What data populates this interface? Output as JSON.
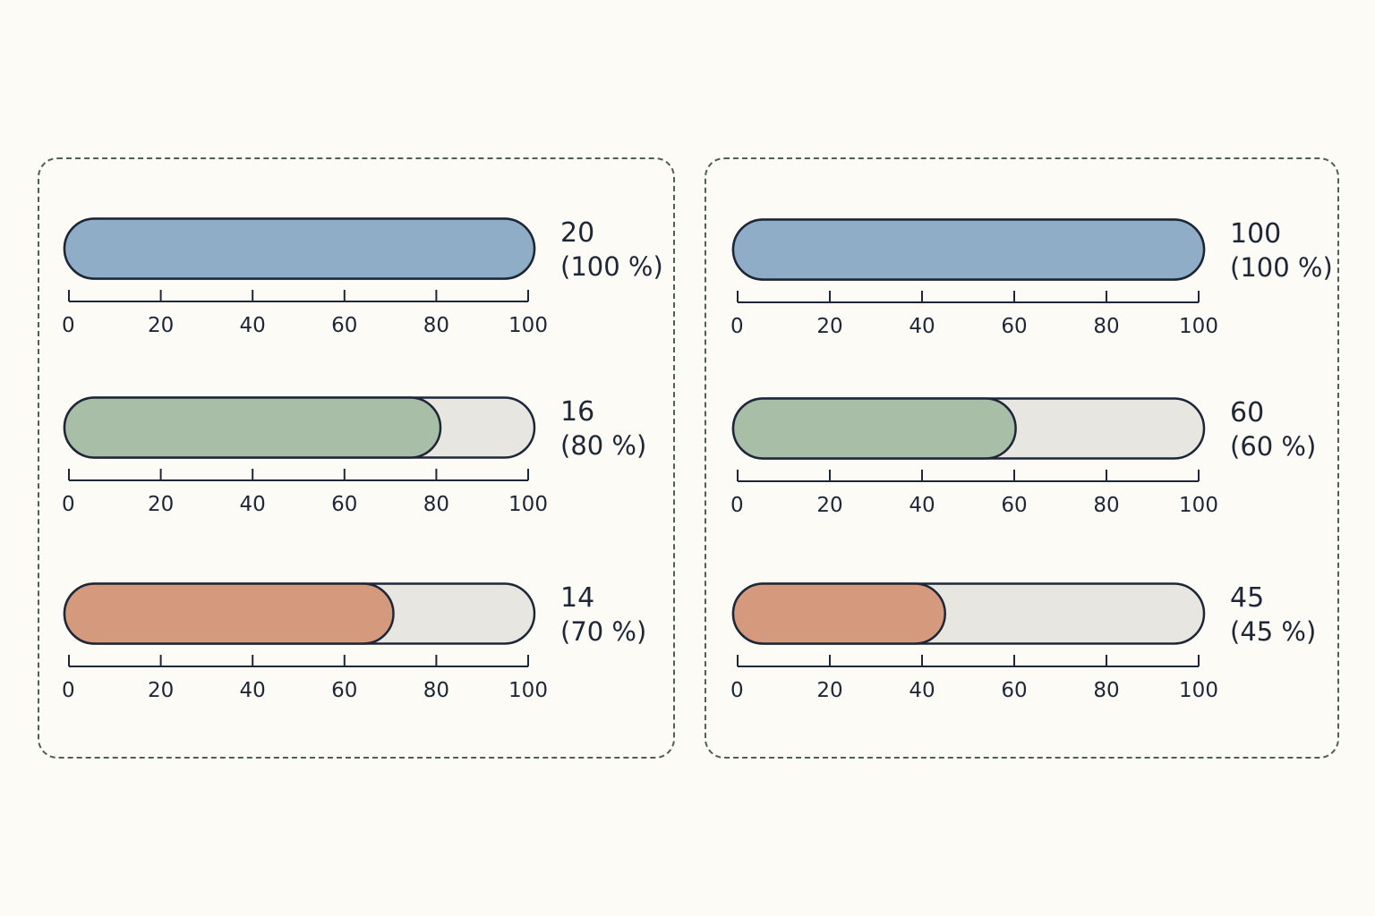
{
  "colors": {
    "background": "#fcfbf5",
    "panel_border": "#4f5f52",
    "bar_outline": "#1e2738",
    "track": "#e7e6e0",
    "blue": "#8fadc7",
    "green": "#a8bea6",
    "orange": "#d59a7d"
  },
  "chart_data": [
    {
      "type": "bar",
      "orientation": "horizontal",
      "title": "",
      "xlabel": "",
      "ylabel": "",
      "xlim": [
        0,
        100
      ],
      "ticks": [
        "0",
        "20",
        "40",
        "60",
        "80",
        "100"
      ],
      "bars": [
        {
          "value": "20",
          "percent": 100,
          "percent_label": "(100 %)",
          "color": "#8fadc7"
        },
        {
          "value": "16",
          "percent": 80,
          "percent_label": "(80 %)",
          "color": "#a8bea6"
        },
        {
          "value": "14",
          "percent": 70,
          "percent_label": "(70 %)",
          "color": "#d59a7d"
        }
      ]
    },
    {
      "type": "bar",
      "orientation": "horizontal",
      "title": "",
      "xlabel": "",
      "ylabel": "",
      "xlim": [
        0,
        100
      ],
      "ticks": [
        "0",
        "20",
        "40",
        "60",
        "80",
        "100"
      ],
      "bars": [
        {
          "value": "100",
          "percent": 100,
          "percent_label": "(100 %)",
          "color": "#8fadc7"
        },
        {
          "value": "60",
          "percent": 60,
          "percent_label": "(60 %)",
          "color": "#a8bea6"
        },
        {
          "value": "45",
          "percent": 45,
          "percent_label": "(45 %)",
          "color": "#d59a7d"
        }
      ]
    }
  ]
}
